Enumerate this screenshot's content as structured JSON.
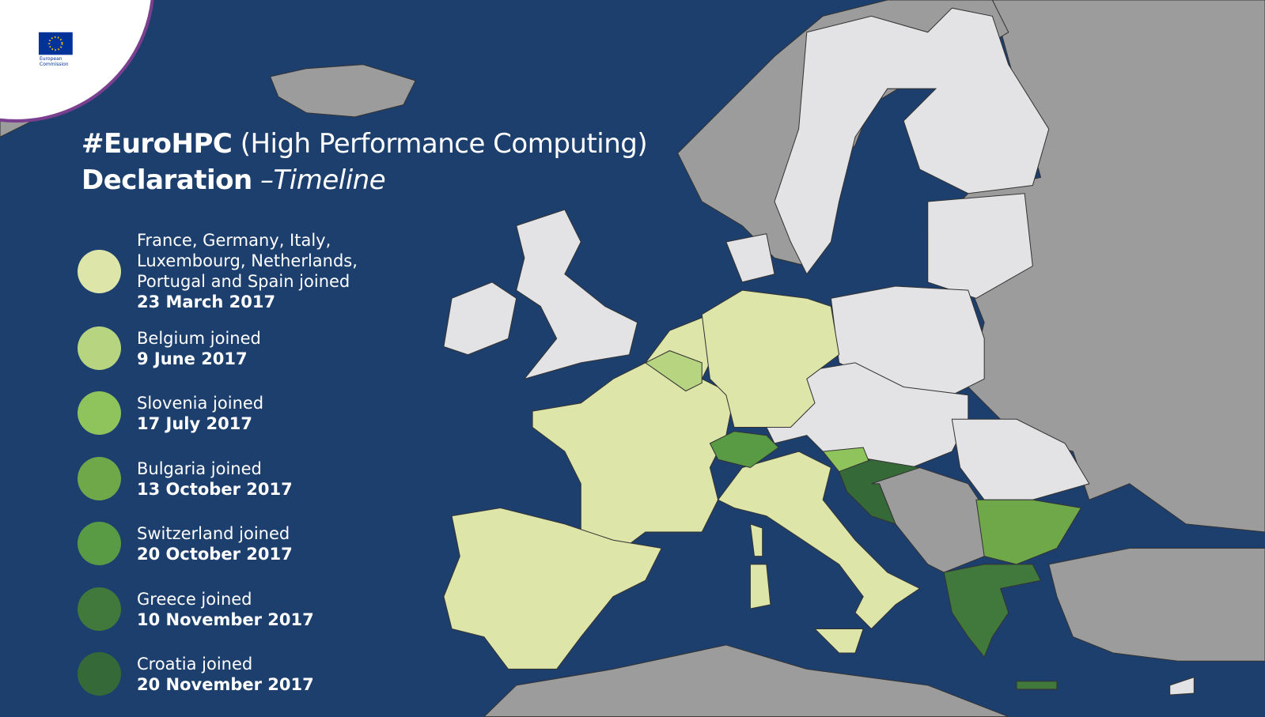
{
  "logo": {
    "lines": [
      "European",
      "Commission"
    ]
  },
  "title": {
    "hashtag": "#EuroHPC",
    "subtitle": "(High Performance Computing)",
    "line2": "Declaration",
    "line2_suffix": "–Timeline"
  },
  "legend": [
    {
      "color": "#dde5a8",
      "text": [
        "France, Germany, Italy,",
        "Luxembourg, Netherlands,",
        "Portugal and Spain joined"
      ],
      "date": "23 March 2017"
    },
    {
      "color": "#b7d581",
      "text": [
        "Belgium joined"
      ],
      "date": "9 June 2017"
    },
    {
      "color": "#8fc35c",
      "text": [
        "Slovenia joined"
      ],
      "date": "17 July 2017"
    },
    {
      "color": "#6fa849",
      "text": [
        "Bulgaria joined"
      ],
      "date": "13 October 2017"
    },
    {
      "color": "#599a45",
      "text": [
        "Switzerland joined"
      ],
      "date": "20 October 2017"
    },
    {
      "color": "#40793b",
      "text": [
        "Greece joined"
      ],
      "date": "10 November 2017"
    },
    {
      "color": "#356a38",
      "text": [
        "Croatia joined"
      ],
      "date": "20 November 2017"
    }
  ]
}
